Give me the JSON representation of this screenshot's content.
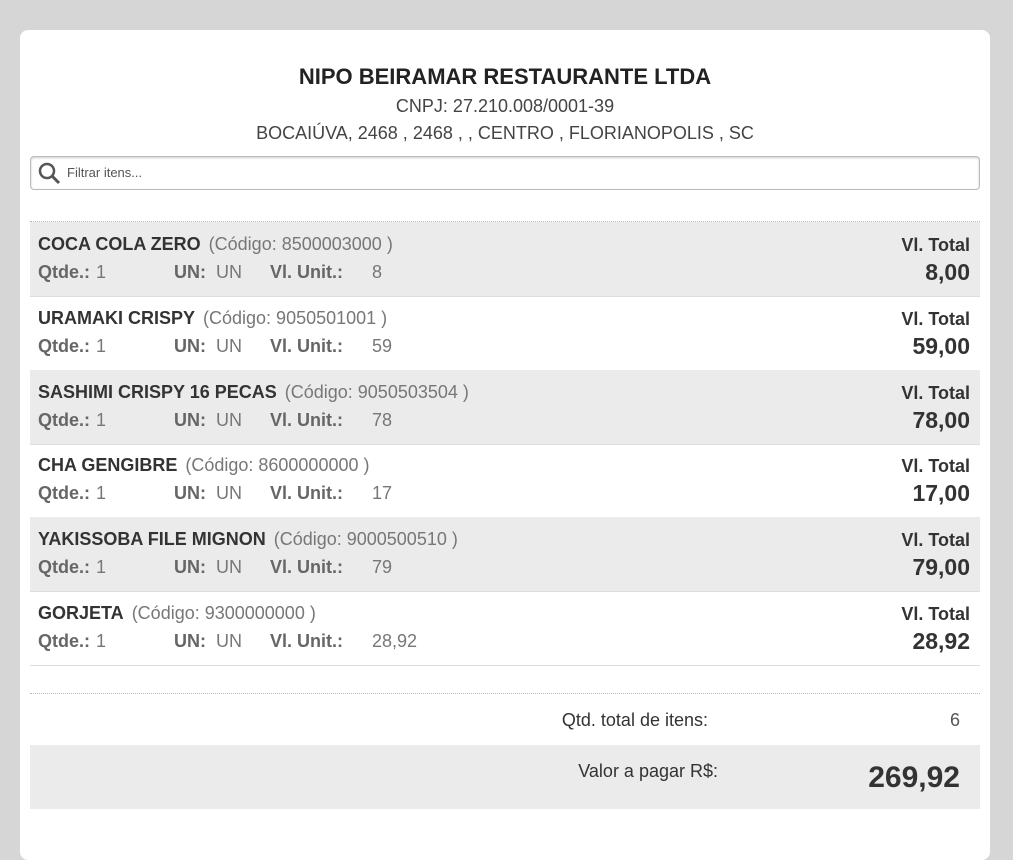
{
  "header": {
    "title": "NIPO BEIRAMAR RESTAURANTE LTDA",
    "cnpj": "CNPJ: 27.210.008/0001-39",
    "address": "BOCAIÚVA, 2468 , 2468 , , CENTRO , FLORIANOPOLIS , SC"
  },
  "search": {
    "placeholder": "Filtrar itens..."
  },
  "labels": {
    "qty": "Qtde.:",
    "un": "UN:",
    "unit_price": "Vl. Unit.:",
    "total": "Vl. Total"
  },
  "items": [
    {
      "name": "COCA COLA ZERO",
      "code": "(Código: 8500003000 )",
      "qty": "1",
      "un": "UN",
      "unit_price": "8",
      "total": "8,00"
    },
    {
      "name": "URAMAKI CRISPY",
      "code": "(Código: 9050501001 )",
      "qty": "1",
      "un": "UN",
      "unit_price": "59",
      "total": "59,00"
    },
    {
      "name": "SASHIMI CRISPY 16 PECAS",
      "code": "(Código: 9050503504 )",
      "qty": "1",
      "un": "UN",
      "unit_price": "78",
      "total": "78,00"
    },
    {
      "name": "CHA GENGIBRE",
      "code": "(Código: 8600000000 )",
      "qty": "1",
      "un": "UN",
      "unit_price": "17",
      "total": "17,00"
    },
    {
      "name": "YAKISSOBA FILE MIGNON",
      "code": "(Código: 9000500510 )",
      "qty": "1",
      "un": "UN",
      "unit_price": "79",
      "total": "79,00"
    },
    {
      "name": "GORJETA",
      "code": "(Código: 9300000000 )",
      "qty": "1",
      "un": "UN",
      "unit_price": "28,92",
      "total": "28,92"
    }
  ],
  "summary": {
    "count_label": "Qtd. total de itens:",
    "count": "6",
    "amount_label": "Valor a pagar R$:",
    "amount": "269,92"
  }
}
